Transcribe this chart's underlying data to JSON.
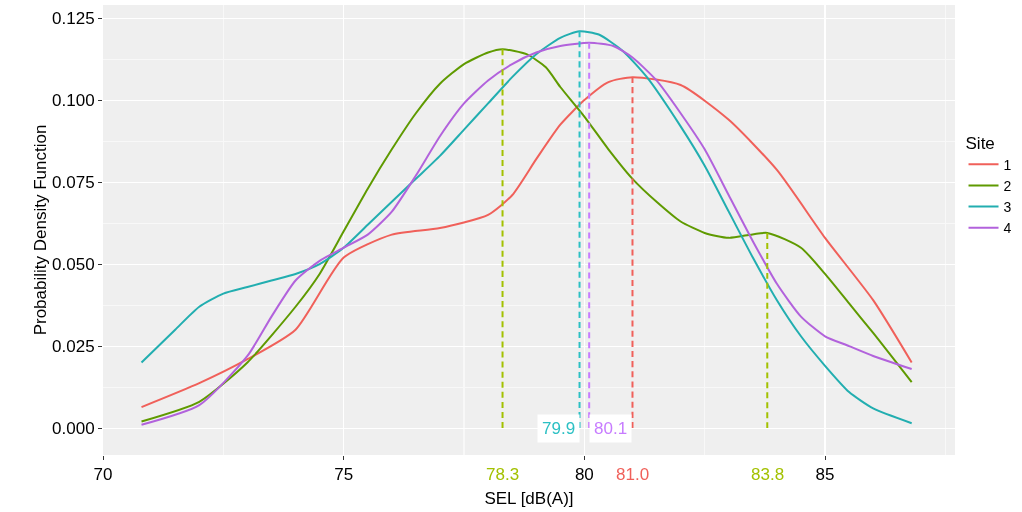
{
  "chart_data": {
    "type": "line",
    "xlabel": "SEL [dB(A)]",
    "ylabel": "Probability Density Function",
    "legend_title": "Site",
    "legend": "right",
    "grid": true,
    "line_style": "solid",
    "marker": "none",
    "xlim": [
      70,
      87.7
    ],
    "xticks": [
      70,
      75,
      80,
      85
    ],
    "ylim": [
      -0.0082,
      0.129
    ],
    "yticks": [
      {
        "value": 0,
        "label": "0.000"
      },
      {
        "value": 0.025,
        "label": "0.025"
      },
      {
        "value": 0.05,
        "label": "0.050"
      },
      {
        "value": 0.075,
        "label": "0.075"
      },
      {
        "value": 0.1,
        "label": "0.100"
      },
      {
        "value": 0.125,
        "label": "0.125"
      }
    ],
    "series": [
      {
        "name": "1",
        "color": "#f0605a",
        "x": [
          70.8,
          72,
          73,
          74,
          75,
          76,
          77,
          78,
          78.5,
          79,
          79.5,
          80,
          80.5,
          81,
          82,
          83,
          84,
          85,
          86,
          86.8
        ],
        "values": [
          0.0064,
          0.0137,
          0.021,
          0.03,
          0.052,
          0.059,
          0.061,
          0.065,
          0.071,
          0.082,
          0.0925,
          0.1,
          0.1055,
          0.107,
          0.1046,
          0.094,
          0.0787,
          0.058,
          0.039,
          0.02
        ]
      },
      {
        "name": "2",
        "color": "#5f9a00",
        "x": [
          70.8,
          72,
          73,
          74,
          74.5,
          75,
          75.5,
          76,
          76.5,
          77,
          77.5,
          78,
          78.3,
          78.8,
          79.2,
          79.5,
          80,
          80.5,
          81,
          81.5,
          82,
          82.5,
          83,
          83.8,
          84.5,
          85,
          85.5,
          86,
          86.8
        ],
        "values": [
          0.002,
          0.008,
          0.02,
          0.037,
          0.047,
          0.06,
          0.073,
          0.085,
          0.096,
          0.105,
          0.111,
          0.1145,
          0.1155,
          0.114,
          0.11,
          0.104,
          0.095,
          0.085,
          0.076,
          0.069,
          0.063,
          0.0595,
          0.058,
          0.0595,
          0.055,
          0.047,
          0.038,
          0.029,
          0.014
        ]
      },
      {
        "name": "3",
        "color": "#22aeb0",
        "x": [
          70.8,
          71.5,
          72,
          72.5,
          73,
          73.5,
          74,
          74.5,
          75,
          75.5,
          76,
          76.5,
          77,
          77.5,
          78,
          78.5,
          79,
          79.5,
          79.9,
          80.3,
          80.8,
          81.3,
          82,
          82.5,
          83,
          83.5,
          84,
          84.5,
          85,
          85.5,
          86,
          86.8
        ],
        "values": [
          0.02,
          0.03,
          0.037,
          0.041,
          0.043,
          0.045,
          0.047,
          0.05,
          0.055,
          0.062,
          0.069,
          0.076,
          0.083,
          0.091,
          0.099,
          0.107,
          0.114,
          0.119,
          0.121,
          0.12,
          0.115,
          0.107,
          0.092,
          0.08,
          0.066,
          0.052,
          0.039,
          0.028,
          0.019,
          0.011,
          0.006,
          0.0015
        ]
      },
      {
        "name": "4",
        "color": "#b262dc",
        "x": [
          70.8,
          72,
          73,
          73.5,
          74,
          74.5,
          75,
          75.5,
          76,
          76.5,
          77,
          77.5,
          78,
          78.5,
          79,
          79.5,
          80.1,
          80.6,
          81,
          81.5,
          82,
          82.5,
          83,
          83.5,
          84,
          84.5,
          85,
          85.5,
          86,
          86.8
        ],
        "values": [
          0.001,
          0.007,
          0.022,
          0.034,
          0.045,
          0.051,
          0.055,
          0.059,
          0.066,
          0.077,
          0.089,
          0.099,
          0.106,
          0.111,
          0.1145,
          0.1165,
          0.1175,
          0.1165,
          0.113,
          0.106,
          0.096,
          0.085,
          0.071,
          0.057,
          0.044,
          0.034,
          0.028,
          0.025,
          0.022,
          0.018
        ]
      },
      {
        "color": "#f0605a",
        "line_style": "dashed",
        "x": [
          81.0,
          81.0
        ],
        "values": [
          0,
          0.107
        ]
      },
      {
        "color": "#a3c100",
        "line_style": "dashed",
        "x": [
          78.3,
          78.3
        ],
        "values": [
          0,
          0.1155
        ]
      },
      {
        "color": "#a3c100",
        "line_style": "dashed",
        "x": [
          83.8,
          83.8
        ],
        "values": [
          0,
          0.0595
        ]
      },
      {
        "color": "#2cc0c4",
        "line_style": "dashed",
        "x": [
          79.9,
          79.9
        ],
        "values": [
          0,
          0.121
        ]
      },
      {
        "color": "#c77cff",
        "line_style": "dashed",
        "x": [
          80.1,
          80.1
        ],
        "values": [
          0,
          0.1175
        ]
      }
    ],
    "annotations": [
      {
        "text": "78.3",
        "x": 78.3,
        "y": 0
      },
      {
        "text": "81.0",
        "x": 81.0,
        "y": 0
      },
      {
        "text": "83.8",
        "x": 83.8,
        "y": 0
      },
      {
        "text": "79.9",
        "x": 79.9,
        "y": 0
      },
      {
        "text": "80.1",
        "x": 80.1,
        "y": 0
      }
    ]
  }
}
